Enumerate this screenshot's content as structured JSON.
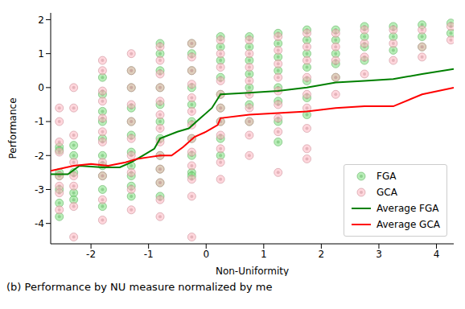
{
  "chart_data": {
    "type": "scatter",
    "xlabel": "Non-Uniformity",
    "ylabel": "Performance",
    "caption": "(b) Performance by NU measure normalized by me",
    "xlim": [
      -2.7,
      4.3
    ],
    "xticks": [
      -2,
      -1,
      0,
      1,
      2,
      3,
      4
    ],
    "ylim": [
      -4.6,
      2.2
    ],
    "yticks": [
      -4,
      -3,
      -2,
      -1,
      0,
      1,
      2
    ],
    "grid": false,
    "legend": "lower right",
    "series": [
      {
        "name": "FGA",
        "type": "scatter",
        "marker": "circle",
        "color": "#7ee07e",
        "x": [
          -2.55,
          -2.55,
          -2.55,
          -2.55,
          -2.55,
          -2.55,
          -2.55,
          -2.3,
          -2.3,
          -2.3,
          -2.3,
          -2.3,
          -1.8,
          -1.8,
          -1.8,
          -1.8,
          -1.8,
          -1.8,
          -1.8,
          -1.8,
          -1.8,
          -1.8,
          -1.3,
          -1.3,
          -1.3,
          -1.3,
          -1.3,
          -1.3,
          -1.3,
          -1.3,
          -1.3,
          -1.3,
          -0.8,
          -0.8,
          -0.8,
          -0.8,
          -0.8,
          -0.8,
          -0.8,
          -0.8,
          -0.8,
          -0.8,
          -0.8,
          -0.25,
          -0.25,
          -0.25,
          -0.25,
          -0.25,
          -0.25,
          -0.25,
          -0.25,
          -0.25,
          -0.25,
          0.25,
          0.25,
          0.25,
          0.25,
          0.25,
          0.25,
          0.25,
          0.25,
          0.25,
          0.75,
          0.75,
          0.75,
          0.75,
          0.75,
          0.75,
          0.75,
          1.25,
          1.25,
          1.25,
          1.25,
          1.25,
          1.25,
          1.25,
          1.25,
          1.75,
          1.75,
          1.75,
          1.75,
          1.75,
          1.75,
          1.75,
          2.25,
          2.25,
          2.25,
          2.25,
          2.25,
          2.75,
          2.75,
          2.75,
          2.75,
          3.25,
          3.25,
          3.25,
          3.75,
          3.75,
          3.75,
          4.25,
          4.25
        ],
        "values": [
          -1.75,
          -1.85,
          -2.5,
          -2.6,
          -3.0,
          -3.4,
          -3.8,
          -1.7,
          -2.0,
          -2.5,
          -3.1,
          -3.3,
          0.3,
          -0.2,
          -0.7,
          -1.0,
          -1.5,
          -2.0,
          -2.3,
          -2.6,
          -3.0,
          -3.5,
          0.5,
          0.0,
          -0.6,
          -1.0,
          -1.4,
          -1.9,
          -2.3,
          -2.6,
          -2.9,
          -3.2,
          1.3,
          1.0,
          0.5,
          0.0,
          -0.5,
          -1.0,
          -1.5,
          -2.0,
          -2.4,
          -2.8,
          -3.2,
          1.3,
          1.0,
          0.5,
          0.0,
          -0.5,
          -1.0,
          -1.5,
          -2.0,
          -2.5,
          -2.6,
          1.5,
          1.2,
          0.8,
          0.3,
          -0.2,
          -0.6,
          -1.0,
          -1.5,
          -2.0,
          1.5,
          1.2,
          0.8,
          0.4,
          0.0,
          -0.5,
          -1.0,
          1.6,
          1.3,
          0.9,
          0.5,
          0.0,
          -0.4,
          -1.0,
          -1.6,
          1.7,
          1.4,
          1.0,
          0.6,
          0.2,
          -0.3,
          -0.8,
          1.7,
          1.4,
          1.0,
          0.7,
          0.3,
          1.8,
          1.5,
          1.2,
          0.8,
          1.8,
          1.5,
          1.1,
          1.85,
          1.5,
          1.2,
          1.9,
          1.6
        ]
      },
      {
        "name": "GCA",
        "type": "scatter",
        "marker": "circle",
        "color": "#ffb6c1",
        "x": [
          -2.55,
          -2.55,
          -2.55,
          -2.55,
          -2.55,
          -2.55,
          -2.55,
          -2.55,
          -2.3,
          -2.3,
          -2.3,
          -2.3,
          -2.3,
          -2.3,
          -2.3,
          -2.3,
          -1.8,
          -1.8,
          -1.8,
          -1.8,
          -1.8,
          -1.8,
          -1.8,
          -1.8,
          -1.8,
          -1.8,
          -1.8,
          -1.3,
          -1.3,
          -1.3,
          -1.3,
          -1.3,
          -1.3,
          -1.3,
          -1.3,
          -1.3,
          -1.3,
          -0.8,
          -0.8,
          -0.8,
          -0.8,
          -0.8,
          -0.8,
          -0.8,
          -0.8,
          -0.8,
          -0.8,
          -0.8,
          -0.8,
          -0.8,
          -0.25,
          -0.25,
          -0.25,
          -0.25,
          -0.25,
          -0.25,
          -0.25,
          -0.25,
          -0.25,
          -0.25,
          -0.25,
          -0.25,
          -0.25,
          0.25,
          0.25,
          0.25,
          0.25,
          0.25,
          0.25,
          0.25,
          0.25,
          0.25,
          0.25,
          0.25,
          0.75,
          0.75,
          0.75,
          0.75,
          0.75,
          0.75,
          0.75,
          0.75,
          0.75,
          1.25,
          1.25,
          1.25,
          1.25,
          1.25,
          1.25,
          1.25,
          1.25,
          1.25,
          1.75,
          1.75,
          1.75,
          1.75,
          1.75,
          1.75,
          1.75,
          1.75,
          1.75,
          2.25,
          2.25,
          2.25,
          2.25,
          2.25,
          2.75,
          2.75,
          2.75,
          2.75,
          3.25,
          3.25,
          3.25,
          3.75,
          3.75,
          3.75,
          4.25,
          4.25
        ],
        "values": [
          -0.6,
          -1.0,
          -1.6,
          -1.9,
          -2.6,
          -2.9,
          -3.1,
          -3.6,
          0.0,
          -0.6,
          -1.4,
          -2.2,
          -2.6,
          -2.9,
          -3.5,
          -4.4,
          0.8,
          0.5,
          -0.1,
          -0.4,
          -0.9,
          -1.3,
          -1.6,
          -2.2,
          -2.6,
          -3.3,
          -3.9,
          1.0,
          0.5,
          0.0,
          -0.5,
          -1.0,
          -1.5,
          -2.0,
          -2.5,
          -3.0,
          -3.6,
          1.2,
          0.8,
          0.4,
          0.0,
          -0.4,
          -0.8,
          -1.2,
          -1.6,
          -2.0,
          -2.4,
          -2.8,
          -3.3,
          -3.8,
          1.3,
          0.9,
          0.5,
          0.1,
          -0.3,
          -0.7,
          -1.1,
          -1.5,
          -1.9,
          -2.3,
          -2.7,
          -3.2,
          -4.4,
          1.4,
          1.0,
          0.6,
          0.2,
          -0.2,
          -0.6,
          -1.0,
          -1.4,
          -1.8,
          -2.2,
          -2.7,
          1.4,
          1.0,
          0.6,
          0.2,
          -0.2,
          -0.6,
          -1.0,
          -1.4,
          -2.0,
          1.5,
          1.1,
          0.7,
          0.3,
          -0.1,
          -0.5,
          -0.9,
          -1.3,
          -2.5,
          1.6,
          1.2,
          0.8,
          0.3,
          -0.2,
          -0.6,
          -1.2,
          -1.8,
          -2.1,
          1.6,
          1.2,
          0.8,
          0.3,
          -0.2,
          1.7,
          1.3,
          0.9,
          0.4,
          1.7,
          1.3,
          0.8,
          1.7,
          1.2,
          0.9,
          1.8,
          1.4
        ]
      },
      {
        "name": "Average FGA",
        "type": "line",
        "line_style": "solid",
        "color": "#008000",
        "x": [
          -2.7,
          -2.4,
          -2.2,
          -1.8,
          -1.5,
          -1.3,
          -1.1,
          -0.9,
          -0.8,
          -0.5,
          -0.3,
          -0.1,
          0.1,
          0.25,
          0.75,
          1.25,
          1.75,
          2.25,
          2.75,
          3.25,
          3.75,
          4.3
        ],
        "values": [
          -2.55,
          -2.55,
          -2.3,
          -2.35,
          -2.35,
          -2.2,
          -2.0,
          -1.8,
          -1.5,
          -1.3,
          -1.2,
          -0.9,
          -0.6,
          -0.2,
          -0.15,
          -0.1,
          0.0,
          0.15,
          0.2,
          0.25,
          0.4,
          0.55
        ]
      },
      {
        "name": "Average GCA",
        "type": "line",
        "line_style": "solid",
        "color": "#ff0000",
        "x": [
          -2.7,
          -2.3,
          -2.0,
          -1.7,
          -1.4,
          -1.2,
          -1.0,
          -0.8,
          -0.6,
          -0.4,
          -0.2,
          0.0,
          0.2,
          0.25,
          0.75,
          1.25,
          1.75,
          2.25,
          2.75,
          3.25,
          3.75,
          4.3
        ],
        "values": [
          -2.45,
          -2.3,
          -2.25,
          -2.3,
          -2.2,
          -2.1,
          -2.05,
          -2.0,
          -2.0,
          -1.75,
          -1.45,
          -1.3,
          -1.1,
          -0.9,
          -0.8,
          -0.75,
          -0.7,
          -0.6,
          -0.55,
          -0.55,
          -0.2,
          0.0
        ]
      }
    ]
  }
}
